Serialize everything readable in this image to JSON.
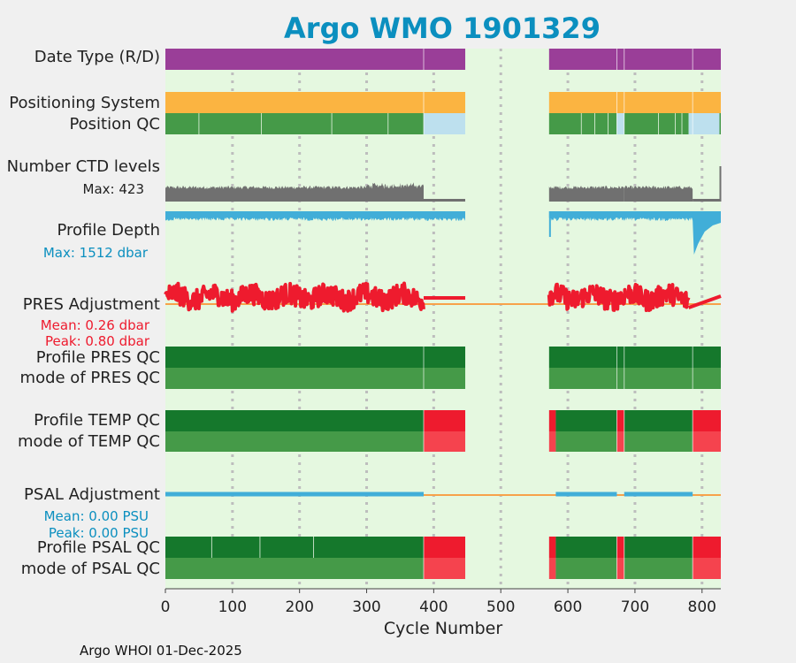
{
  "title": "Argo WMO 1901329",
  "xlabel": "Cycle Number",
  "footer": "Argo WHOI 01-Dec-2025",
  "colors": {
    "page_bg": "#f0f0f0",
    "plot_bg": "#e5f8e0",
    "title": "#0b8fbf",
    "purple": "#9a3e98",
    "orange": "#fbb441",
    "green_dark": "#15782c",
    "green_mid": "#459a48",
    "light_blue": "#bde0ee",
    "red": "#ee1b2e",
    "red_light": "#f5434e",
    "gray": "#707070",
    "cyan": "#41aed8",
    "adj_red": "#ee1b2e",
    "zero_line": "#f7a24a",
    "grid": "#bdbdbd"
  },
  "chart_data": {
    "type": "timeline",
    "x": {
      "label": "Cycle Number",
      "lim": [
        0,
        828
      ],
      "ticks": [
        0,
        100,
        200,
        300,
        400,
        500,
        600,
        700,
        800
      ]
    },
    "gap": [
      447,
      572
    ],
    "last_cycle": 828,
    "row_labels": {
      "date_type": "Date Type (R/D)",
      "positioning": "Positioning System",
      "position_qc": "Position QC",
      "ctd_levels": "Number CTD levels",
      "ctd_max": "Max: 423",
      "profile_depth": "Profile Depth",
      "depth_max": "Max: 1512 dbar",
      "pres_adj": "PRES Adjustment",
      "pres_mean": "Mean: 0.26 dbar",
      "pres_peak": "Peak: 0.80 dbar",
      "pres_qc": "Profile PRES QC",
      "pres_mode": "mode of PRES QC",
      "temp_qc": "Profile TEMP QC",
      "temp_mode": "mode of TEMP QC",
      "psal_adj": "PSAL Adjustment",
      "psal_mean": "Mean: 0.00 PSU",
      "psal_peak": "Peak: 0.00 PSU",
      "psal_qc": "Profile PSAL QC",
      "psal_mode": "mode of PSAL QC"
    },
    "tracks": {
      "date_type": [
        [
          0,
          447,
          "purple"
        ],
        [
          572,
          828,
          "purple"
        ]
      ],
      "positioning": [
        [
          0,
          447,
          "orange"
        ],
        [
          572,
          828,
          "orange"
        ]
      ],
      "position_qc": [
        [
          0,
          385,
          "green_mid"
        ],
        [
          385,
          447,
          "light_blue"
        ],
        [
          572,
          673,
          "green_mid"
        ],
        [
          673,
          684,
          "light_blue"
        ],
        [
          684,
          780,
          "green_mid"
        ],
        [
          780,
          786,
          "light_blue"
        ],
        [
          786,
          826,
          "light_blue"
        ],
        [
          826,
          828,
          "green_mid"
        ]
      ],
      "pres_qc": [
        [
          0,
          447,
          "green_dark"
        ],
        [
          572,
          828,
          "green_dark"
        ]
      ],
      "pres_mode": [
        [
          0,
          447,
          "green_mid"
        ],
        [
          572,
          828,
          "green_mid"
        ]
      ],
      "temp_qc": [
        [
          0,
          385,
          "green_dark"
        ],
        [
          385,
          447,
          "red"
        ],
        [
          572,
          582,
          "red"
        ],
        [
          582,
          673,
          "green_dark"
        ],
        [
          673,
          684,
          "red"
        ],
        [
          684,
          786,
          "green_dark"
        ],
        [
          786,
          828,
          "red"
        ]
      ],
      "temp_mode": [
        [
          0,
          385,
          "green_mid"
        ],
        [
          385,
          447,
          "red_light"
        ],
        [
          572,
          582,
          "red_light"
        ],
        [
          582,
          673,
          "green_mid"
        ],
        [
          673,
          684,
          "red_light"
        ],
        [
          684,
          786,
          "green_mid"
        ],
        [
          786,
          828,
          "red_light"
        ]
      ],
      "psal_qc": [
        [
          0,
          385,
          "green_dark"
        ],
        [
          385,
          447,
          "red"
        ],
        [
          572,
          582,
          "red"
        ],
        [
          582,
          673,
          "green_dark"
        ],
        [
          673,
          684,
          "red"
        ],
        [
          684,
          786,
          "green_dark"
        ],
        [
          786,
          828,
          "red"
        ]
      ],
      "psal_mode": [
        [
          0,
          385,
          "green_mid"
        ],
        [
          385,
          447,
          "red_light"
        ],
        [
          572,
          582,
          "red_light"
        ],
        [
          582,
          673,
          "green_mid"
        ],
        [
          673,
          684,
          "red_light"
        ],
        [
          684,
          786,
          "green_mid"
        ],
        [
          786,
          828,
          "red_light"
        ]
      ]
    },
    "qc_breaks": [
      385,
      673,
      684,
      786
    ],
    "psal_adjustment_segments": [
      [
        0,
        385
      ],
      [
        582,
        673
      ],
      [
        684,
        786
      ]
    ],
    "pres_adjustment": {
      "zero_line": 0,
      "mean": 0.26,
      "peak": 0.8,
      "segments": [
        {
          "range": [
            0,
            385
          ],
          "noisy": true
        },
        {
          "range": [
            385,
            447
          ],
          "constant": 0.35
        },
        {
          "range": [
            572,
            780
          ],
          "noisy": true
        },
        {
          "range": [
            780,
            828
          ],
          "ramp": [
            -0.2,
            0.45
          ]
        }
      ]
    },
    "ctd_levels": {
      "max": 423,
      "segments": [
        [
          0,
          385,
          "high"
        ],
        [
          385,
          447,
          "low"
        ],
        [
          572,
          684,
          "high"
        ],
        [
          684,
          786,
          "high"
        ],
        [
          786,
          826,
          "low"
        ]
      ]
    },
    "profile_depth": {
      "max_dbar": 1512,
      "segments": [
        [
          0,
          447
        ],
        [
          572,
          828
        ]
      ],
      "anomaly": [
        786,
        828
      ]
    }
  }
}
